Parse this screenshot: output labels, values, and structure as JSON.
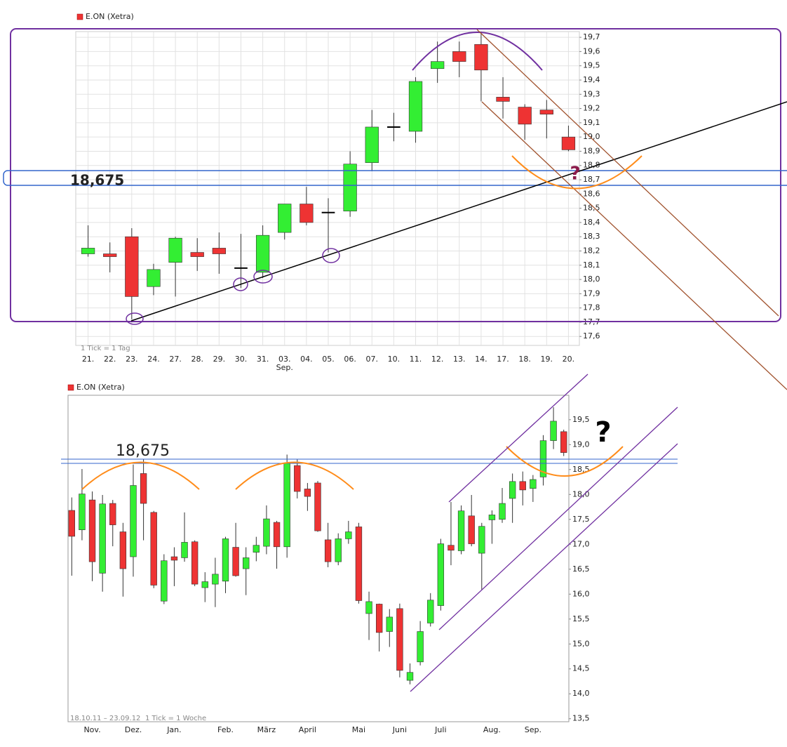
{
  "chart_data": [
    {
      "type": "candlestick",
      "title": "E.ON (Xetra)",
      "footnote": "1 Tick = 1 Tag",
      "x_sublabel": "Sep.",
      "level_label": "18,675",
      "question": "?",
      "categories": [
        "21.",
        "22.",
        "23.",
        "24.",
        "27.",
        "28.",
        "29.",
        "30.",
        "31.",
        "03.",
        "04.",
        "05.",
        "06.",
        "07.",
        "10.",
        "11.",
        "12.",
        "13.",
        "14.",
        "17.",
        "18.",
        "19.",
        "20."
      ],
      "open": [
        18.18,
        18.18,
        18.3,
        17.95,
        18.12,
        18.19,
        18.22,
        18.08,
        18.05,
        18.33,
        18.53,
        18.47,
        18.48,
        18.82,
        19.07,
        19.04,
        19.48,
        19.6,
        19.65,
        19.28,
        19.21,
        19.19,
        19.0
      ],
      "high": [
        18.38,
        18.26,
        18.36,
        18.11,
        18.3,
        18.29,
        18.33,
        18.32,
        18.38,
        18.53,
        18.65,
        18.57,
        18.9,
        19.19,
        19.17,
        19.42,
        19.67,
        19.67,
        19.74,
        19.42,
        19.23,
        19.26,
        19.08
      ],
      "low": [
        18.16,
        18.05,
        17.72,
        17.89,
        17.88,
        18.06,
        18.04,
        17.94,
        18.01,
        18.28,
        18.38,
        18.19,
        18.44,
        18.76,
        18.97,
        18.96,
        19.38,
        19.42,
        19.25,
        19.13,
        18.98,
        18.99,
        18.9
      ],
      "close": [
        18.22,
        18.16,
        17.88,
        18.07,
        18.29,
        18.16,
        18.18,
        18.08,
        18.31,
        18.53,
        18.4,
        18.47,
        18.81,
        19.07,
        19.07,
        19.39,
        19.53,
        19.53,
        19.47,
        19.25,
        19.09,
        19.16,
        18.91
      ],
      "up_color": "#33ee33",
      "down_color": "#ee3333",
      "doji_color": "#000000",
      "grid": true,
      "ylim": [
        17.54,
        19.74
      ],
      "yticks": [
        {
          "value": 17.6,
          "label": "17,6"
        },
        {
          "value": 17.7,
          "label": "17,7"
        },
        {
          "value": 17.8,
          "label": "17,8"
        },
        {
          "value": 17.9,
          "label": "17,9"
        },
        {
          "value": 18.0,
          "label": "18,0"
        },
        {
          "value": 18.1,
          "label": "18,1"
        },
        {
          "value": 18.2,
          "label": "18,2"
        },
        {
          "value": 18.3,
          "label": "18,3"
        },
        {
          "value": 18.4,
          "label": "18,4"
        },
        {
          "value": 18.5,
          "label": "18,5"
        },
        {
          "value": 18.6,
          "label": "18,6"
        },
        {
          "value": 18.7,
          "label": "18,7"
        },
        {
          "value": 18.8,
          "label": "18,8"
        },
        {
          "value": 18.9,
          "label": "18,9"
        },
        {
          "value": 19.0,
          "label": "19,0"
        },
        {
          "value": 19.1,
          "label": "19,1"
        },
        {
          "value": 19.2,
          "label": "19,2"
        },
        {
          "value": 19.3,
          "label": "19,3"
        },
        {
          "value": 19.4,
          "label": "19,4"
        },
        {
          "value": 19.5,
          "label": "19,5"
        },
        {
          "value": 19.6,
          "label": "19,6"
        },
        {
          "value": 19.7,
          "label": "19,7"
        }
      ]
    },
    {
      "type": "candlestick",
      "title": "E.ON (Xetra)",
      "footnote": "1 Tick = 1 Woche",
      "date_range": "18.10.11 – 23.09.12",
      "level_label": "18,675",
      "question": "?",
      "categories": [
        null,
        null,
        "Nov.",
        null,
        null,
        null,
        "Dez.",
        null,
        null,
        null,
        "Jan.",
        null,
        null,
        null,
        null,
        "Feb.",
        null,
        null,
        null,
        "März",
        null,
        null,
        null,
        "April",
        null,
        null,
        null,
        null,
        "Mai",
        null,
        null,
        null,
        "Juni",
        null,
        null,
        null,
        "Juli",
        null,
        null,
        null,
        null,
        "Aug.",
        null,
        null,
        null,
        "Sep.",
        null,
        null,
        null
      ],
      "open": [
        17.68,
        17.29,
        17.89,
        16.42,
        17.82,
        17.25,
        16.75,
        18.42,
        17.64,
        15.86,
        16.75,
        16.73,
        17.05,
        16.13,
        16.2,
        16.26,
        16.94,
        16.51,
        16.84,
        16.96,
        17.44,
        16.95,
        18.58,
        18.11,
        18.23,
        17.09,
        16.65,
        17.11,
        17.35,
        15.61,
        15.8,
        15.25,
        15.71,
        14.27,
        14.64,
        15.42,
        15.77,
        16.98,
        16.87,
        17.57,
        16.82,
        17.49,
        17.5,
        17.92,
        18.26,
        18.12,
        18.35,
        19.08,
        19.26
      ],
      "high": [
        17.94,
        18.51,
        18.06,
        17.99,
        17.89,
        17.43,
        18.6,
        18.7,
        17.67,
        16.8,
        16.94,
        17.64,
        17.08,
        16.44,
        16.73,
        17.15,
        17.43,
        16.94,
        17.15,
        17.78,
        17.47,
        18.8,
        18.7,
        18.23,
        18.27,
        17.43,
        17.22,
        17.47,
        17.43,
        16.05,
        15.81,
        15.7,
        15.81,
        14.61,
        15.46,
        16.02,
        17.11,
        17.85,
        17.78,
        17.99,
        17.43,
        17.68,
        18.13,
        18.42,
        18.46,
        18.39,
        19.19,
        19.75,
        19.3
      ],
      "low": [
        16.37,
        17.08,
        16.26,
        16.05,
        16.96,
        15.95,
        16.35,
        17.08,
        16.12,
        15.8,
        16.16,
        16.65,
        16.16,
        15.84,
        15.74,
        16.02,
        16.35,
        15.98,
        16.66,
        16.8,
        16.51,
        16.73,
        17.92,
        17.67,
        17.25,
        16.54,
        16.58,
        17.01,
        15.81,
        15.08,
        14.85,
        14.94,
        14.33,
        14.19,
        14.57,
        15.35,
        15.67,
        16.58,
        16.8,
        16.96,
        16.09,
        17.01,
        17.43,
        17.43,
        17.78,
        17.85,
        18.18,
        18.91,
        18.77
      ],
      "close": [
        17.16,
        18.01,
        16.65,
        17.81,
        17.39,
        16.51,
        18.18,
        17.82,
        16.18,
        16.67,
        16.68,
        17.04,
        16.2,
        16.25,
        16.4,
        17.11,
        16.37,
        16.73,
        16.98,
        17.51,
        16.95,
        18.63,
        18.06,
        17.96,
        17.27,
        16.65,
        17.11,
        17.25,
        15.87,
        15.85,
        15.23,
        15.54,
        14.47,
        14.43,
        15.25,
        15.88,
        17.01,
        16.88,
        17.67,
        17.01,
        17.36,
        17.59,
        17.82,
        18.26,
        18.09,
        18.3,
        19.08,
        19.47,
        18.84
      ],
      "up_color": "#33ee33",
      "down_color": "#ee3333",
      "doji_color": "#000000",
      "grid": false,
      "ylim": [
        13.44,
        19.99
      ],
      "yticks": [
        {
          "value": 13.5,
          "label": "13,5"
        },
        {
          "value": 14.0,
          "label": "14,0"
        },
        {
          "value": 14.5,
          "label": "14,5"
        },
        {
          "value": 15.0,
          "label": "15,0"
        },
        {
          "value": 15.5,
          "label": "15,5"
        },
        {
          "value": 16.0,
          "label": "16,0"
        },
        {
          "value": 16.5,
          "label": "16,5"
        },
        {
          "value": 17.0,
          "label": "17,0"
        },
        {
          "value": 17.5,
          "label": "17,5"
        },
        {
          "value": 18.0,
          "label": "18,0"
        },
        {
          "value": 18.5,
          "label": "18,5"
        },
        {
          "value": 19.0,
          "label": "19,0"
        },
        {
          "value": 19.5,
          "label": "19,5"
        }
      ]
    }
  ]
}
